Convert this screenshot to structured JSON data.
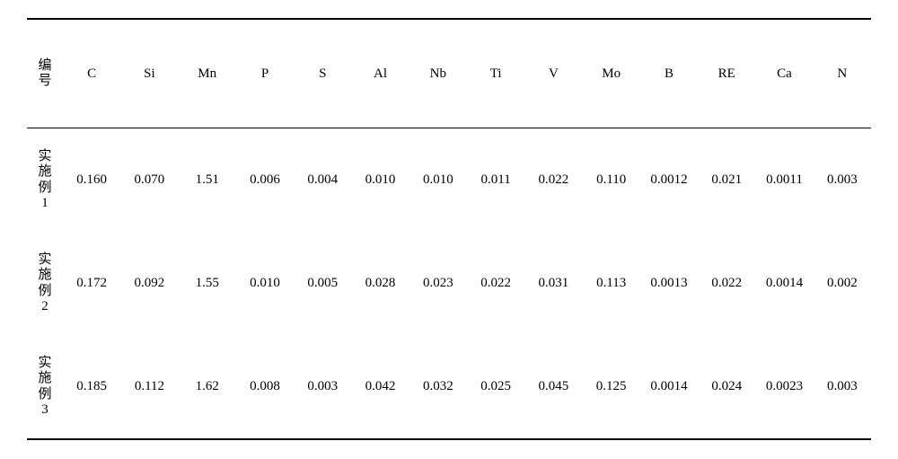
{
  "table": {
    "type": "table",
    "background_color": "#ffffff",
    "text_color": "#000000",
    "border_color": "#000000",
    "header_fontsize": 15,
    "cell_fontsize": 15,
    "header_label": "编号",
    "columns": [
      "C",
      "Si",
      "Mn",
      "P",
      "S",
      "Al",
      "Nb",
      "Ti",
      "V",
      "Mo",
      "B",
      "RE",
      "Ca",
      "N"
    ],
    "rows": [
      {
        "label": "实施例1",
        "values": [
          "0.160",
          "0.070",
          "1.51",
          "0.006",
          "0.004",
          "0.010",
          "0.010",
          "0.011",
          "0.022",
          "0.110",
          "0.0012",
          "0.021",
          "0.0011",
          "0.003"
        ]
      },
      {
        "label": "实施例2",
        "values": [
          "0.172",
          "0.092",
          "1.55",
          "0.010",
          "0.005",
          "0.028",
          "0.023",
          "0.022",
          "0.031",
          "0.113",
          "0.0013",
          "0.022",
          "0.0014",
          "0.002"
        ]
      },
      {
        "label": "实施例3",
        "values": [
          "0.185",
          "0.112",
          "1.62",
          "0.008",
          "0.003",
          "0.042",
          "0.032",
          "0.025",
          "0.045",
          "0.125",
          "0.0014",
          "0.024",
          "0.0023",
          "0.003"
        ]
      }
    ]
  }
}
